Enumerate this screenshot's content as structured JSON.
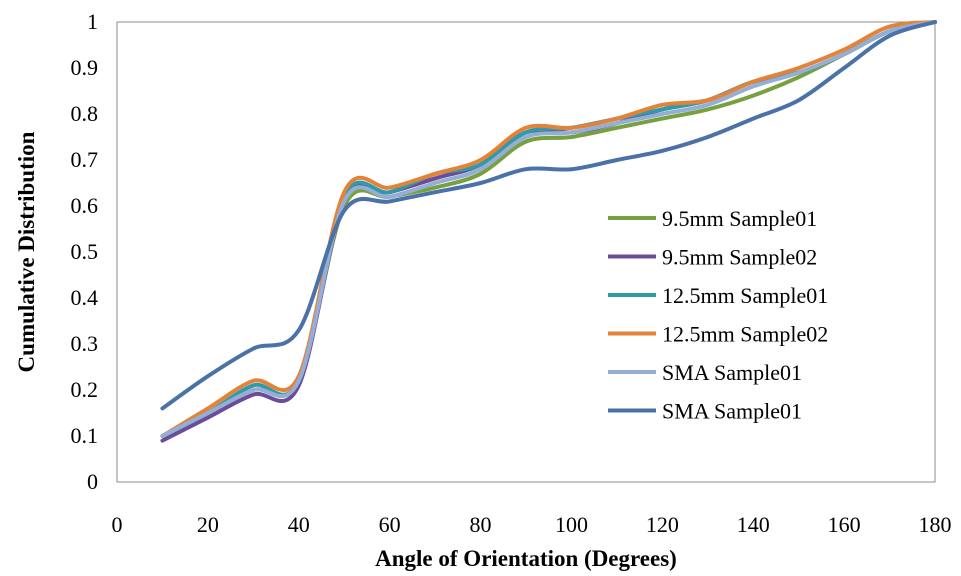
{
  "chart_data": {
    "type": "line",
    "title": "",
    "xlabel": "Angle of Orientation (Degrees)",
    "ylabel": "Cumulative Distribution",
    "xlim": [
      0,
      180
    ],
    "ylim": [
      0,
      1
    ],
    "x_ticks": [
      "0",
      "20",
      "40",
      "60",
      "80",
      "100",
      "120",
      "140",
      "160",
      "180"
    ],
    "y_ticks": [
      "0",
      "0.1",
      "0.2",
      "0.3",
      "0.4",
      "0.5",
      "0.6",
      "0.7",
      "0.8",
      "0.9",
      "1"
    ],
    "grid": false,
    "legend_position": "right",
    "x": [
      10,
      20,
      30,
      40,
      50,
      60,
      70,
      80,
      90,
      100,
      110,
      120,
      130,
      140,
      150,
      160,
      170,
      180
    ],
    "series": [
      {
        "name": "9.5mm Sample01",
        "color": "#77a03e",
        "values": [
          0.1,
          0.15,
          0.2,
          0.22,
          0.6,
          0.62,
          0.64,
          0.67,
          0.74,
          0.75,
          0.77,
          0.79,
          0.81,
          0.84,
          0.88,
          0.93,
          0.98,
          1.0
        ]
      },
      {
        "name": "9.5mm Sample02",
        "color": "#6b4c9a",
        "values": [
          0.09,
          0.14,
          0.19,
          0.21,
          0.61,
          0.63,
          0.66,
          0.69,
          0.76,
          0.76,
          0.78,
          0.81,
          0.83,
          0.87,
          0.89,
          0.93,
          0.98,
          1.0
        ]
      },
      {
        "name": "12.5mm Sample01",
        "color": "#2f9aaa",
        "values": [
          0.1,
          0.15,
          0.21,
          0.22,
          0.62,
          0.63,
          0.67,
          0.69,
          0.76,
          0.77,
          0.79,
          0.81,
          0.83,
          0.87,
          0.89,
          0.93,
          0.98,
          1.0
        ]
      },
      {
        "name": "12.5mm Sample02",
        "color": "#e48338",
        "values": [
          0.1,
          0.16,
          0.22,
          0.23,
          0.63,
          0.64,
          0.67,
          0.7,
          0.77,
          0.77,
          0.79,
          0.82,
          0.83,
          0.87,
          0.9,
          0.94,
          0.99,
          1.0
        ]
      },
      {
        "name": "SMA Sample01",
        "color": "#94aed6",
        "values": [
          0.1,
          0.15,
          0.2,
          0.22,
          0.61,
          0.62,
          0.65,
          0.68,
          0.75,
          0.76,
          0.78,
          0.8,
          0.82,
          0.86,
          0.89,
          0.93,
          0.98,
          1.0
        ]
      },
      {
        "name": "SMA Sample01",
        "color": "#4a72a8",
        "values": [
          0.16,
          0.23,
          0.29,
          0.33,
          0.59,
          0.61,
          0.63,
          0.65,
          0.68,
          0.68,
          0.7,
          0.72,
          0.75,
          0.79,
          0.83,
          0.9,
          0.97,
          1.0
        ]
      }
    ]
  }
}
